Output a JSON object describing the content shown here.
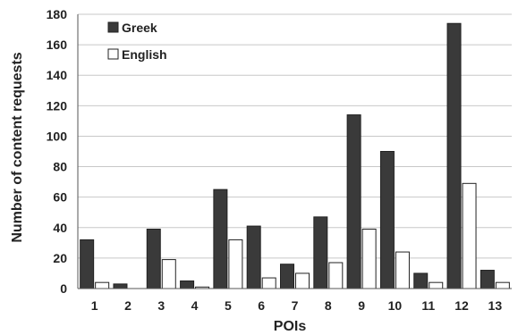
{
  "chart_data": {
    "type": "bar",
    "xlabel": "POIs",
    "ylabel": "Number of content requests",
    "ylim": [
      0,
      180
    ],
    "yticks": [
      0,
      20,
      40,
      60,
      80,
      100,
      120,
      140,
      160,
      180
    ],
    "categories": [
      "1",
      "2",
      "3",
      "4",
      "5",
      "6",
      "7",
      "8",
      "9",
      "10",
      "11",
      "12",
      "13"
    ],
    "grid": "horizontal",
    "legend_position": "top-left",
    "series": [
      {
        "name": "Greek",
        "color": "#3a3a3a",
        "values": [
          32,
          3,
          39,
          5,
          65,
          41,
          16,
          47,
          114,
          90,
          10,
          174,
          12
        ]
      },
      {
        "name": "English",
        "color": "#ffffff",
        "values": [
          4,
          0,
          19,
          1,
          32,
          7,
          10,
          17,
          39,
          24,
          4,
          69,
          4
        ]
      }
    ]
  }
}
